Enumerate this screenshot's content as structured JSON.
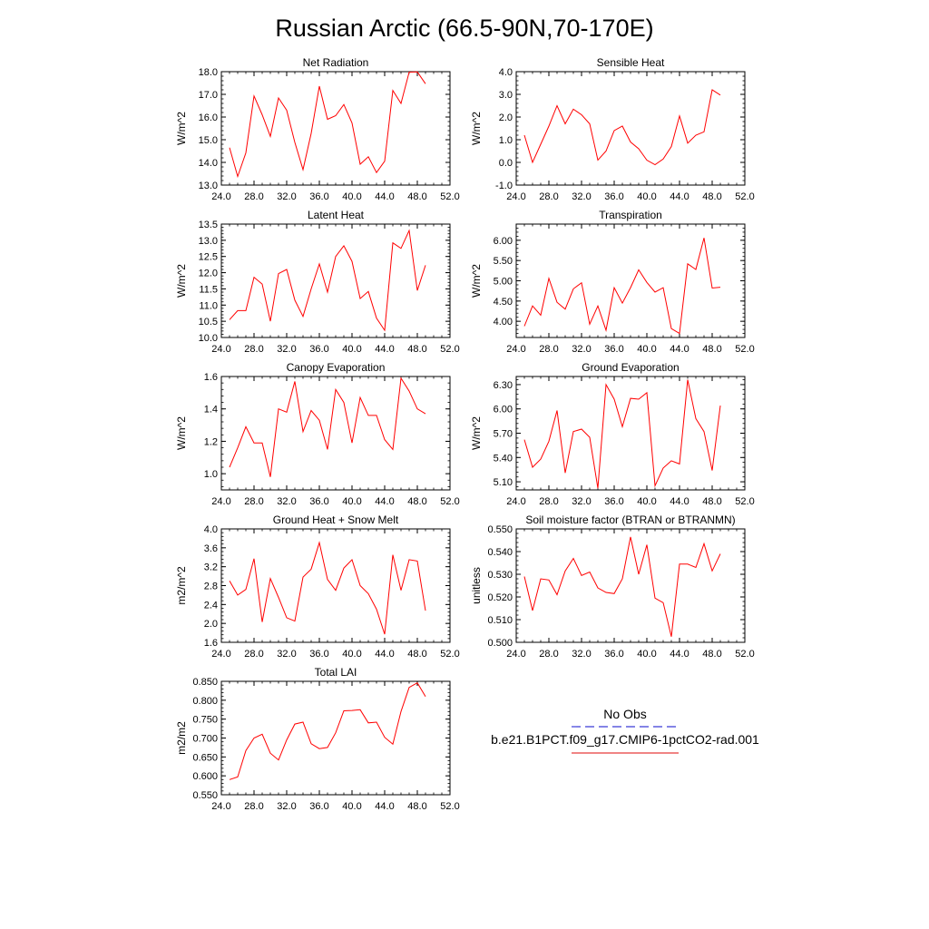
{
  "figure_title": "Russian Arctic (66.5-90N,70-170E)",
  "legend": {
    "obs_label": "No Obs",
    "obs_color": "#3a3ad8",
    "model_label": "b.e21.B1PCT.f09_g17.CMIP6-1pctCO2-rad.001",
    "model_color": "#e83a3a"
  },
  "chart_data": [
    {
      "type": "line",
      "title": "Net Radiation",
      "ylabel": "W/m^2",
      "xlim": [
        24,
        52
      ],
      "ylim": [
        13,
        18
      ],
      "xticks": [
        "24.0",
        "28.0",
        "32.0",
        "36.0",
        "40.0",
        "44.0",
        "48.0",
        "52.0"
      ],
      "yticks": [
        "13.0",
        "14.0",
        "15.0",
        "16.0",
        "17.0",
        "18.0"
      ],
      "series": [
        {
          "color": "#ff0000",
          "x": [
            25,
            26,
            27,
            28,
            29,
            30,
            31,
            32,
            33,
            34,
            35,
            36,
            37,
            38,
            39,
            40,
            41,
            42,
            43,
            44,
            45,
            46,
            47,
            48,
            49
          ],
          "y": [
            14.65,
            13.38,
            14.42,
            16.93,
            16.1,
            15.15,
            16.84,
            16.3,
            14.88,
            13.68,
            15.28,
            17.36,
            15.9,
            16.06,
            16.55,
            15.74,
            13.92,
            14.25,
            13.55,
            14.05,
            17.17,
            16.6,
            17.98,
            17.99,
            17.47
          ]
        }
      ]
    },
    {
      "type": "line",
      "title": "Sensible Heat",
      "ylabel": "W/m^2",
      "xlim": [
        24,
        52
      ],
      "ylim": [
        -1,
        4
      ],
      "xticks": [
        "24.0",
        "28.0",
        "32.0",
        "36.0",
        "40.0",
        "44.0",
        "48.0",
        "52.0"
      ],
      "yticks": [
        "-1.0",
        "0.0",
        "1.0",
        "2.0",
        "3.0",
        "4.0"
      ],
      "series": [
        {
          "color": "#ff0000",
          "x": [
            25,
            26,
            27,
            28,
            29,
            30,
            31,
            32,
            33,
            34,
            35,
            36,
            37,
            38,
            39,
            40,
            41,
            42,
            43,
            44,
            45,
            46,
            47,
            48,
            49
          ],
          "y": [
            1.2,
            0.0,
            0.8,
            1.6,
            2.5,
            1.7,
            2.35,
            2.1,
            1.7,
            0.1,
            0.5,
            1.4,
            1.6,
            0.9,
            0.6,
            0.1,
            -0.1,
            0.15,
            0.7,
            2.05,
            0.85,
            1.2,
            1.35,
            3.2,
            2.97
          ]
        }
      ]
    },
    {
      "type": "line",
      "title": "Latent Heat",
      "ylabel": "W/m^2",
      "xlim": [
        24,
        52
      ],
      "ylim": [
        10,
        13.5
      ],
      "xticks": [
        "24.0",
        "28.0",
        "32.0",
        "36.0",
        "40.0",
        "44.0",
        "48.0",
        "52.0"
      ],
      "yticks": [
        "10.0",
        "10.5",
        "11.0",
        "11.5",
        "12.0",
        "12.5",
        "13.0",
        "13.5"
      ],
      "series": [
        {
          "color": "#ff0000",
          "x": [
            25,
            26,
            27,
            28,
            29,
            30,
            31,
            32,
            33,
            34,
            35,
            36,
            37,
            38,
            39,
            40,
            41,
            42,
            43,
            44,
            45,
            46,
            47,
            48,
            49
          ],
          "y": [
            10.55,
            10.83,
            10.83,
            11.86,
            11.65,
            10.5,
            11.97,
            12.1,
            11.15,
            10.65,
            11.5,
            12.27,
            11.4,
            12.5,
            12.83,
            12.35,
            11.2,
            11.42,
            10.6,
            10.22,
            12.92,
            12.75,
            13.3,
            11.45,
            12.23
          ]
        }
      ]
    },
    {
      "type": "line",
      "title": "Transpiration",
      "ylabel": "W/m^2",
      "xlim": [
        24,
        52
      ],
      "ylim": [
        3.6,
        6.4
      ],
      "xticks": [
        "24.0",
        "28.0",
        "32.0",
        "36.0",
        "40.0",
        "44.0",
        "48.0",
        "52.0"
      ],
      "yticks": [
        "4.00",
        "4.50",
        "5.00",
        "5.50",
        "6.00"
      ],
      "series": [
        {
          "color": "#ff0000",
          "x": [
            25,
            26,
            27,
            28,
            29,
            30,
            31,
            32,
            33,
            34,
            35,
            36,
            37,
            38,
            39,
            40,
            41,
            42,
            43,
            44,
            45,
            46,
            47,
            48,
            49
          ],
          "y": [
            3.88,
            4.38,
            4.15,
            5.06,
            4.47,
            4.3,
            4.8,
            4.95,
            3.93,
            4.38,
            3.78,
            4.83,
            4.45,
            4.83,
            5.27,
            4.96,
            4.72,
            4.83,
            3.82,
            3.7,
            5.42,
            5.28,
            6.06,
            4.82,
            4.84
          ]
        }
      ]
    },
    {
      "type": "line",
      "title": "Canopy Evaporation",
      "ylabel": "W/m^2",
      "xlim": [
        24,
        52
      ],
      "ylim": [
        0.9,
        1.6
      ],
      "xticks": [
        "24.0",
        "28.0",
        "32.0",
        "36.0",
        "40.0",
        "44.0",
        "48.0",
        "52.0"
      ],
      "yticks": [
        "1.0",
        "1.2",
        "1.4",
        "1.6"
      ],
      "series": [
        {
          "color": "#ff0000",
          "x": [
            25,
            26,
            27,
            28,
            29,
            30,
            31,
            32,
            33,
            34,
            35,
            36,
            37,
            38,
            39,
            40,
            41,
            42,
            43,
            44,
            45,
            46,
            47,
            48,
            49
          ],
          "y": [
            1.04,
            1.16,
            1.29,
            1.19,
            1.19,
            0.98,
            1.4,
            1.38,
            1.57,
            1.26,
            1.39,
            1.33,
            1.15,
            1.52,
            1.44,
            1.19,
            1.47,
            1.36,
            1.36,
            1.21,
            1.15,
            1.59,
            1.51,
            1.4,
            1.37
          ]
        }
      ]
    },
    {
      "type": "line",
      "title": "Ground Evaporation",
      "ylabel": "W/m^2",
      "xlim": [
        24,
        52
      ],
      "ylim": [
        5.0,
        6.4
      ],
      "xticks": [
        "24.0",
        "28.0",
        "32.0",
        "36.0",
        "40.0",
        "44.0",
        "48.0",
        "52.0"
      ],
      "yticks": [
        "5.10",
        "5.40",
        "5.70",
        "6.00",
        "6.30"
      ],
      "series": [
        {
          "color": "#ff0000",
          "x": [
            25,
            26,
            27,
            28,
            29,
            30,
            31,
            32,
            33,
            34,
            35,
            36,
            37,
            38,
            39,
            40,
            41,
            42,
            43,
            44,
            45,
            46,
            47,
            48,
            49
          ],
          "y": [
            5.62,
            5.28,
            5.38,
            5.6,
            5.98,
            5.21,
            5.72,
            5.75,
            5.65,
            5.02,
            6.3,
            6.12,
            5.78,
            6.13,
            6.12,
            6.2,
            5.05,
            5.27,
            5.36,
            5.32,
            6.36,
            5.88,
            5.72,
            5.24,
            6.04
          ]
        }
      ]
    },
    {
      "type": "line",
      "title": "Ground Heat + Snow Melt",
      "ylabel": "m2/m^2",
      "xlim": [
        24,
        52
      ],
      "ylim": [
        1.6,
        4.0
      ],
      "xticks": [
        "24.0",
        "28.0",
        "32.0",
        "36.0",
        "40.0",
        "44.0",
        "48.0",
        "52.0"
      ],
      "yticks": [
        "1.6",
        "2.0",
        "2.4",
        "2.8",
        "3.2",
        "3.6",
        "4.0"
      ],
      "series": [
        {
          "color": "#ff0000",
          "x": [
            25,
            26,
            27,
            28,
            29,
            30,
            31,
            32,
            33,
            34,
            35,
            36,
            37,
            38,
            39,
            40,
            41,
            42,
            43,
            44,
            45,
            46,
            47,
            48,
            49
          ],
          "y": [
            2.9,
            2.6,
            2.72,
            3.37,
            2.03,
            2.95,
            2.55,
            2.12,
            2.05,
            2.98,
            3.15,
            3.71,
            2.93,
            2.7,
            3.17,
            3.35,
            2.8,
            2.63,
            2.3,
            1.77,
            3.45,
            2.7,
            3.35,
            3.32,
            2.27
          ]
        }
      ]
    },
    {
      "type": "line",
      "title": "Soil moisture factor (BTRAN or BTRANMN)",
      "ylabel": "unitless",
      "xlim": [
        24,
        52
      ],
      "ylim": [
        0.5,
        0.55
      ],
      "xticks": [
        "24.0",
        "28.0",
        "32.0",
        "36.0",
        "40.0",
        "44.0",
        "48.0",
        "52.0"
      ],
      "yticks": [
        "0.500",
        "0.510",
        "0.520",
        "0.530",
        "0.540",
        "0.550"
      ],
      "series": [
        {
          "color": "#ff0000",
          "x": [
            25,
            26,
            27,
            28,
            29,
            30,
            31,
            32,
            33,
            34,
            35,
            36,
            37,
            38,
            39,
            40,
            41,
            42,
            43,
            44,
            45,
            46,
            47,
            48,
            49
          ],
          "y": [
            0.529,
            0.514,
            0.528,
            0.5275,
            0.521,
            0.5315,
            0.537,
            0.5295,
            0.531,
            0.524,
            0.522,
            0.5215,
            0.528,
            0.5465,
            0.53,
            0.543,
            0.5195,
            0.5175,
            0.5025,
            0.5345,
            0.5345,
            0.533,
            0.5435,
            0.5315,
            0.539
          ]
        }
      ]
    },
    {
      "type": "line",
      "title": "Total LAI",
      "ylabel": "m2/m2",
      "xlim": [
        24,
        52
      ],
      "ylim": [
        0.55,
        0.85
      ],
      "xticks": [
        "24.0",
        "28.0",
        "32.0",
        "36.0",
        "40.0",
        "44.0",
        "48.0",
        "52.0"
      ],
      "yticks": [
        "0.550",
        "0.600",
        "0.650",
        "0.700",
        "0.750",
        "0.800",
        "0.850"
      ],
      "series": [
        {
          "color": "#ff0000",
          "x": [
            25,
            26,
            27,
            28,
            29,
            30,
            31,
            32,
            33,
            34,
            35,
            36,
            37,
            38,
            39,
            40,
            41,
            42,
            43,
            44,
            45,
            46,
            47,
            48,
            49
          ],
          "y": [
            0.59,
            0.597,
            0.667,
            0.7,
            0.71,
            0.66,
            0.642,
            0.695,
            0.737,
            0.742,
            0.685,
            0.672,
            0.675,
            0.714,
            0.772,
            0.773,
            0.775,
            0.74,
            0.742,
            0.702,
            0.684,
            0.77,
            0.834,
            0.846,
            0.81
          ]
        }
      ]
    }
  ]
}
